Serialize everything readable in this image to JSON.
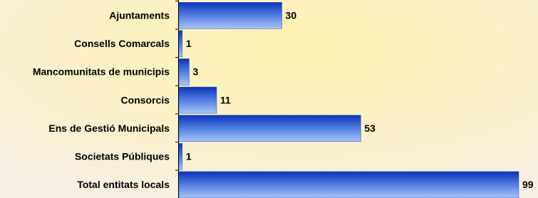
{
  "chart_data": {
    "type": "hbar",
    "categories": [
      "Ajuntaments",
      "Consells Comarcals",
      "Mancomunitats de municipis",
      "Consorcis",
      "Ens de Gestió Municipals",
      "Societats Públiques",
      "Total entitats locals"
    ],
    "values": [
      30,
      1,
      3,
      11,
      53,
      1,
      99
    ],
    "color": "#1f4fc8"
  }
}
